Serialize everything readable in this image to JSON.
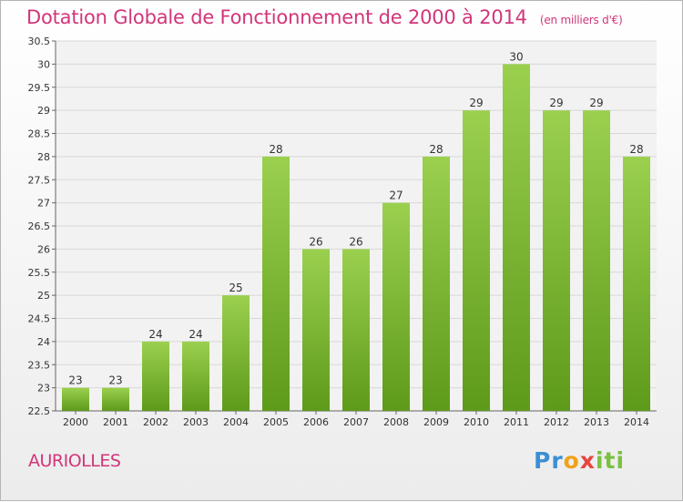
{
  "chart_data": {
    "type": "bar",
    "title": "Dotation Globale de Fonctionnement de 2000 à 2014",
    "unit_note": "(en milliers d'€)",
    "categories": [
      "2000",
      "2001",
      "2002",
      "2003",
      "2004",
      "2005",
      "2006",
      "2007",
      "2008",
      "2009",
      "2010",
      "2011",
      "2012",
      "2013",
      "2014"
    ],
    "values": [
      23,
      23,
      24,
      24,
      25,
      28,
      26,
      26,
      27,
      28,
      29,
      30,
      29,
      29,
      28
    ],
    "value_labels": [
      "23",
      "23",
      "24",
      "24",
      "25",
      "28",
      "26",
      "26",
      "27",
      "28",
      "29",
      "30",
      "29",
      "29",
      "28"
    ],
    "ylim": [
      22.5,
      30.5
    ],
    "yticks": [
      "22.5",
      "23",
      "23.5",
      "24",
      "24.5",
      "25",
      "25.5",
      "26",
      "26.5",
      "27",
      "27.5",
      "28",
      "28.5",
      "29",
      "29.5",
      "30",
      "30.5"
    ],
    "grid": true,
    "bar_color_top": "#9bd04f",
    "bar_color_bottom": "#5e9a1a",
    "xlabel": "",
    "ylabel": ""
  },
  "footer": {
    "commune": "AURIOLLES",
    "logo_text": "Proxiti"
  },
  "colors": {
    "title": "#d2357a",
    "logo_blue": "#3a8fd6",
    "logo_orange": "#f0a21a",
    "logo_green": "#7ac13f",
    "logo_red": "#e8453c"
  }
}
